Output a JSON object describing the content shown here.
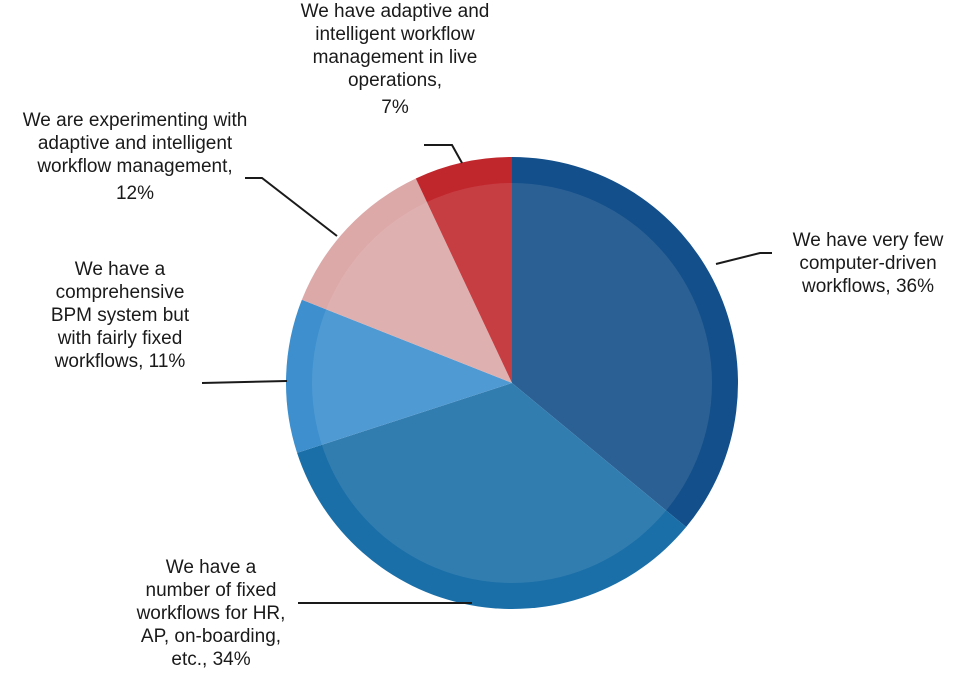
{
  "chart_data": {
    "type": "pie",
    "categories": [
      "We have very few computer-driven workflows,",
      "We have a number of fixed workflows for HR, AP, on-boarding, etc.,",
      "We have a comprehensive BPM system but with fairly fixed workflows,",
      "We are experimenting with adaptive and intelligent workflow management,",
      "We have adaptive and intelligent workflow management in live operations,"
    ],
    "values": [
      36,
      34,
      11,
      12,
      7
    ],
    "value_labels": [
      "36%",
      "34%",
      "11%",
      "12%",
      "7%"
    ],
    "colors": [
      "#134f8a",
      "#1a6fa8",
      "#3d8fce",
      "#dca8a8",
      "#c0272d"
    ]
  }
}
